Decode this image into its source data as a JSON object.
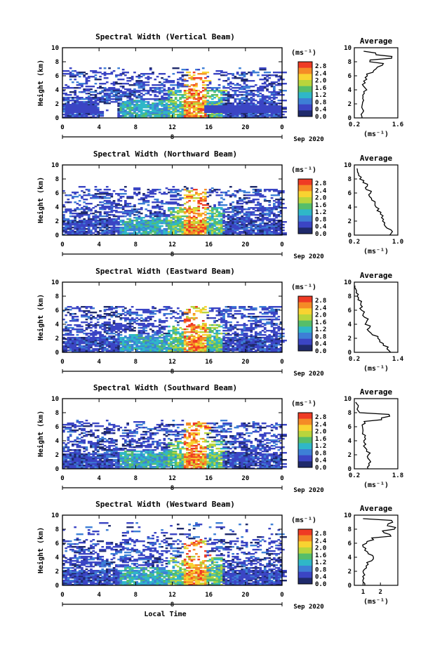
{
  "figure": {
    "xlabel": "Local Time",
    "cbar_unit": "(ms⁻¹)",
    "cbar_ticks": [
      "2.8",
      "2.4",
      "2.0",
      "1.6",
      "1.2",
      "0.8",
      "0.4",
      "0.0"
    ],
    "cbar_colors": [
      "#ef3b24",
      "#f58b26",
      "#f9d331",
      "#b9d53c",
      "#56be6a",
      "#2fb7c8",
      "#3d7fd6",
      "#3b45c4",
      "#1f2a6b"
    ],
    "avg_title": "Average",
    "avg_xlabel": "(ms⁻¹)",
    "date_label": "Sep 2020",
    "day_label": "8"
  },
  "chart_data": [
    {
      "type": "heatmap",
      "title": "Spectral Width (Vertical Beam)",
      "ylabel": "Height (km)",
      "xlabel": "",
      "x_ticks": [
        "0",
        "4",
        "8",
        "12",
        "16",
        "20",
        "0"
      ],
      "y_ticks": [
        "0",
        "2",
        "4",
        "6",
        "8",
        "10"
      ],
      "xlim": [
        0,
        24
      ],
      "ylim": [
        0,
        10
      ],
      "zlim": [
        0,
        2.8
      ],
      "colorbar_unit": "ms⁻¹",
      "max_height_km": 7.2,
      "peak_time_h": 14.3,
      "peak_height_km": 5.2
    },
    {
      "type": "line",
      "title": "Average",
      "xlabel": "(ms⁻¹)",
      "x_ticks": [
        "0.2",
        "1.6"
      ],
      "xlim": [
        0.2,
        1.6
      ],
      "ylim": [
        0,
        10
      ],
      "y": [
        0,
        0.5,
        1,
        1.5,
        2,
        2.5,
        3,
        3.5,
        4,
        4.5,
        5,
        5.5,
        6,
        6.5,
        7,
        7.5,
        8,
        8.5,
        9,
        9.5
      ],
      "x": [
        0.45,
        0.42,
        0.5,
        0.44,
        0.46,
        0.5,
        0.48,
        0.52,
        0.6,
        0.5,
        0.55,
        0.6,
        0.62,
        0.8,
        0.9,
        1.1,
        0.7,
        1.4,
        0.9,
        0.5
      ]
    },
    {
      "type": "heatmap",
      "title": "Spectral Width (Northward Beam)",
      "ylabel": "Height (km)",
      "xlabel": "",
      "x_ticks": [
        "0",
        "4",
        "8",
        "12",
        "16",
        "20",
        "0"
      ],
      "y_ticks": [
        "0",
        "2",
        "4",
        "6",
        "8",
        "10"
      ],
      "xlim": [
        0,
        24
      ],
      "ylim": [
        0,
        10
      ],
      "zlim": [
        0,
        2.8
      ],
      "colorbar_unit": "ms⁻¹",
      "max_height_km": 7.0,
      "peak_time_h": 14.3,
      "peak_height_km": 5.0
    },
    {
      "type": "line",
      "title": "Average",
      "xlabel": "(ms⁻¹)",
      "x_ticks": [
        "0.2",
        "1.0"
      ],
      "xlim": [
        0.2,
        1.0
      ],
      "ylim": [
        0,
        10
      ],
      "y": [
        0,
        0.5,
        1,
        1.5,
        2,
        2.5,
        3,
        3.5,
        4,
        4.5,
        5,
        5.5,
        6,
        6.5,
        7,
        7.5,
        8,
        8.5,
        9,
        9.5
      ],
      "x": [
        0.85,
        0.9,
        0.8,
        0.75,
        0.72,
        0.7,
        0.68,
        0.62,
        0.6,
        0.58,
        0.52,
        0.48,
        0.5,
        0.42,
        0.44,
        0.36,
        0.3,
        0.28,
        0.26,
        0.25
      ]
    },
    {
      "type": "heatmap",
      "title": "Spectral Width (Eastward Beam)",
      "ylabel": "Height (km)",
      "xlabel": "",
      "x_ticks": [
        "0",
        "4",
        "8",
        "12",
        "16",
        "20",
        "0"
      ],
      "y_ticks": [
        "0",
        "2",
        "4",
        "6",
        "8",
        "10"
      ],
      "xlim": [
        0,
        24
      ],
      "ylim": [
        0,
        10
      ],
      "zlim": [
        0,
        2.8
      ],
      "colorbar_unit": "ms⁻¹",
      "max_height_km": 6.5,
      "peak_time_h": 14.3,
      "peak_height_km": 5.0
    },
    {
      "type": "line",
      "title": "Average",
      "xlabel": "(ms⁻¹)",
      "x_ticks": [
        "0.2",
        "1.4"
      ],
      "xlim": [
        0.2,
        1.4
      ],
      "ylim": [
        0,
        10
      ],
      "y": [
        0,
        0.5,
        1,
        1.5,
        2,
        2.5,
        3,
        3.5,
        4,
        4.5,
        5,
        5.5,
        6,
        6.5,
        7,
        7.5,
        8,
        8.5,
        9,
        9.5
      ],
      "x": [
        1.2,
        1.1,
        1.0,
        0.9,
        0.85,
        0.7,
        0.6,
        0.62,
        0.5,
        0.55,
        0.48,
        0.45,
        0.4,
        0.42,
        0.38,
        0.3,
        0.28,
        0.25,
        0.24,
        0.22
      ]
    },
    {
      "type": "heatmap",
      "title": "Spectral Width (Southward Beam)",
      "ylabel": "Height (km)",
      "xlabel": "",
      "x_ticks": [
        "0",
        "4",
        "8",
        "12",
        "16",
        "20",
        "0"
      ],
      "y_ticks": [
        "0",
        "2",
        "4",
        "6",
        "8",
        "10"
      ],
      "xlim": [
        0,
        24
      ],
      "ylim": [
        0,
        10
      ],
      "zlim": [
        0,
        2.8
      ],
      "colorbar_unit": "ms⁻¹",
      "max_height_km": 7.0,
      "peak_time_h": 14.3,
      "peak_height_km": 5.5
    },
    {
      "type": "line",
      "title": "Average",
      "xlabel": "(ms⁻¹)",
      "x_ticks": [
        "0.2",
        "1.8"
      ],
      "xlim": [
        0.2,
        1.8
      ],
      "ylim": [
        0,
        10
      ],
      "y": [
        0,
        0.5,
        1,
        1.5,
        2,
        2.5,
        3,
        3.5,
        4,
        4.5,
        5,
        5.5,
        6,
        6.5,
        7,
        7.5,
        8,
        8.5,
        9,
        9.5
      ],
      "x": [
        0.7,
        0.75,
        0.8,
        0.7,
        0.72,
        0.65,
        0.6,
        0.62,
        0.55,
        0.58,
        0.5,
        0.52,
        0.5,
        0.6,
        1.2,
        1.5,
        0.4,
        0.3,
        0.35,
        0.25
      ]
    },
    {
      "type": "heatmap",
      "title": "Spectral Width (Westward Beam)",
      "ylabel": "Height (km)",
      "xlabel": "Local Time",
      "x_ticks": [
        "0",
        "4",
        "8",
        "12",
        "16",
        "20",
        "0"
      ],
      "y_ticks": [
        "0",
        "2",
        "4",
        "6",
        "8",
        "10"
      ],
      "xlim": [
        0,
        24
      ],
      "ylim": [
        0,
        10
      ],
      "zlim": [
        0,
        2.8
      ],
      "colorbar_unit": "ms⁻¹",
      "max_height_km": 9.0,
      "peak_time_h": 14.3,
      "peak_height_km": 5.0
    },
    {
      "type": "line",
      "title": "Average",
      "xlabel": "(ms⁻¹)",
      "x_ticks": [
        "1",
        "2"
      ],
      "xlim": [
        0.5,
        3.0
      ],
      "ylim": [
        0,
        10
      ],
      "y": [
        0,
        0.5,
        1,
        1.5,
        2,
        2.5,
        3,
        3.5,
        4,
        4.5,
        5,
        5.5,
        6,
        6.5,
        7,
        7.5,
        8,
        8.5,
        9,
        9.5
      ],
      "x": [
        1.1,
        1.0,
        1.05,
        1.1,
        1.0,
        1.2,
        1.3,
        1.5,
        1.6,
        1.3,
        1.1,
        1.0,
        1.2,
        1.6,
        2.6,
        2.2,
        2.8,
        2.4,
        2.7,
        1.0
      ]
    }
  ]
}
